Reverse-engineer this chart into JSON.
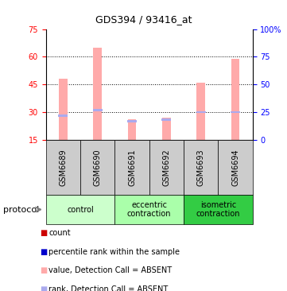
{
  "title": "GDS394 / 93416_at",
  "samples": [
    "GSM6689",
    "GSM6690",
    "GSM6691",
    "GSM6692",
    "GSM6693",
    "GSM6694"
  ],
  "pink_bar_tops": [
    48,
    65,
    26,
    27,
    46,
    59
  ],
  "blue_bar_centers": [
    28,
    31,
    25,
    26,
    30,
    30
  ],
  "ylim_left": [
    15,
    75
  ],
  "ylim_right": [
    0,
    100
  ],
  "yticks_left": [
    15,
    30,
    45,
    60,
    75
  ],
  "yticks_right": [
    0,
    25,
    50,
    75,
    100
  ],
  "ytick_labels_right": [
    "0",
    "25",
    "50",
    "75",
    "100%"
  ],
  "grid_lines": [
    30,
    45,
    60
  ],
  "group_defs": [
    {
      "start": 0,
      "end": 2,
      "color": "#ccffcc",
      "label": "control"
    },
    {
      "start": 2,
      "end": 4,
      "color": "#aaffaa",
      "label": "eccentric\ncontraction"
    },
    {
      "start": 4,
      "end": 6,
      "color": "#33cc44",
      "label": "isometric\ncontraction"
    }
  ],
  "legend_colors": [
    "#cc0000",
    "#0000cc",
    "#ffaaaa",
    "#aaaaee"
  ],
  "legend_labels": [
    "count",
    "percentile rank within the sample",
    "value, Detection Call = ABSENT",
    "rank, Detection Call = ABSENT"
  ],
  "pink_color": "#ffaaaa",
  "blue_color": "#aaaaee",
  "sample_box_color": "#cccccc",
  "title_fontsize": 9,
  "tick_fontsize": 7,
  "label_fontsize": 7,
  "legend_fontsize": 7
}
